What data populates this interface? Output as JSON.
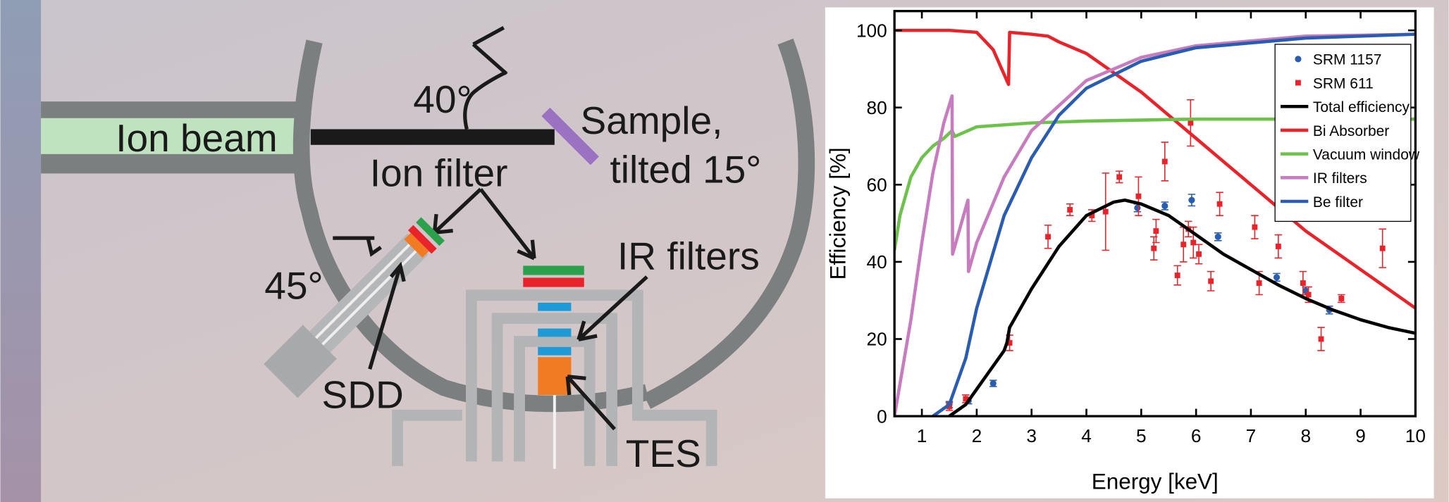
{
  "diagram": {
    "labels": {
      "ion_beam": "Ion beam",
      "angle_40": "40°",
      "sample_line1": "Sample,",
      "sample_line2": "tilted 15°",
      "ion_filter": "Ion filter",
      "angle_45": "45°",
      "ir_filters": "IR filters",
      "sdd": "SDD",
      "tes": "TES"
    }
  },
  "chart_data": {
    "type": "line",
    "x_label": "Energy [keV]",
    "y_label": "Efficiency [%]",
    "xlim": [
      0.5,
      10
    ],
    "ylim": [
      0,
      105
    ],
    "xticks": [
      1,
      2,
      3,
      4,
      5,
      6,
      7,
      8,
      9,
      10
    ],
    "yticks": [
      0,
      20,
      40,
      60,
      80,
      100
    ],
    "grid": false,
    "legend": "upper right",
    "series": [
      {
        "name": "SRM 1157",
        "type": "scatter",
        "marker": "circle",
        "color": "#2a5db0",
        "x": [
          1.5,
          1.85,
          2.3,
          4.93,
          5.43,
          5.92,
          6.4,
          7.47,
          8.0,
          8.43
        ],
        "values": [
          3,
          4,
          8.5,
          54,
          54.5,
          56,
          46.5,
          36,
          32.5,
          27.5
        ],
        "errors": [
          0.8,
          0.8,
          0.8,
          1,
          1,
          1.5,
          1,
          1,
          1,
          1
        ]
      },
      {
        "name": "SRM 611",
        "type": "scatter",
        "marker": "square",
        "color": "#e8242a",
        "x": [
          1.5,
          1.8,
          2.6,
          3.3,
          3.7,
          4.1,
          4.35,
          4.6,
          4.95,
          5.23,
          5.27,
          5.43,
          5.66,
          5.77,
          5.86,
          5.9,
          5.95,
          6.05,
          6.27,
          6.43,
          7.07,
          7.15,
          7.5,
          7.95,
          8.05,
          8.28,
          8.65,
          9.4
        ],
        "values": [
          2.5,
          4.5,
          19,
          46.5,
          53.5,
          52,
          53,
          62,
          57,
          43.5,
          48,
          66,
          36.5,
          44.5,
          48.5,
          76,
          45,
          42,
          35,
          55,
          49,
          34.5,
          44,
          34.5,
          31.5,
          20,
          30.5,
          43.5
        ],
        "errors": [
          1,
          1,
          2,
          3,
          1.5,
          1.5,
          10,
          1.5,
          5,
          3,
          3,
          5,
          2.5,
          4.5,
          2,
          6,
          4,
          2.5,
          2.5,
          3,
          3,
          3,
          3,
          3,
          2,
          3,
          1,
          5
        ]
      },
      {
        "name": "Total efficiency",
        "type": "line",
        "color": "#000000",
        "x": [
          1.5,
          1.8,
          2,
          2.2,
          2.5,
          2.55,
          2.6,
          3,
          3.5,
          4,
          4.5,
          4.7,
          5,
          5.5,
          6,
          6.5,
          7,
          7.5,
          8,
          8.5,
          9,
          9.5,
          10
        ],
        "values": [
          0,
          3,
          7,
          11,
          17,
          19,
          23,
          33,
          44,
          52,
          55.5,
          56,
          55,
          52,
          47,
          42,
          38,
          34,
          30.5,
          27.5,
          25,
          23,
          21.5
        ]
      },
      {
        "name": "Bi Absorber",
        "type": "line",
        "color": "#e8242a",
        "x": [
          0.5,
          1,
          1.5,
          2,
          2.3,
          2.58,
          2.6,
          3,
          3.3,
          3.5,
          4,
          4.5,
          5,
          5.5,
          6,
          6.5,
          7,
          7.5,
          8,
          8.5,
          9,
          9.5,
          10
        ],
        "values": [
          100,
          100,
          100,
          99.5,
          95,
          86,
          99.5,
          99,
          98.5,
          97,
          94,
          89,
          84,
          78,
          72,
          66,
          60,
          54,
          48,
          43,
          38,
          33,
          28
        ]
      },
      {
        "name": "Vacuum window",
        "type": "line",
        "color": "#6cc24a",
        "x": [
          0.5,
          0.6,
          0.8,
          1,
          1.2,
          1.4,
          1.55,
          1.6,
          2,
          3,
          4,
          6,
          8,
          10
        ],
        "values": [
          43,
          52,
          62,
          67,
          70,
          72,
          74,
          72.5,
          75,
          76,
          76.5,
          77,
          77,
          77
        ]
      },
      {
        "name": "IR filters",
        "type": "line",
        "color": "#c77cc0",
        "x": [
          0.5,
          0.8,
          1,
          1.2,
          1.4,
          1.55,
          1.56,
          1.84,
          1.85,
          2,
          2.5,
          3,
          4,
          5,
          6,
          8,
          10
        ],
        "values": [
          0,
          25,
          45,
          63,
          76,
          83,
          42,
          56,
          37.5,
          45,
          62,
          74,
          87,
          93,
          96,
          98.5,
          99
        ]
      },
      {
        "name": "Be filter",
        "type": "line",
        "color": "#2a5db0",
        "x": [
          1.2,
          1.5,
          1.8,
          2,
          2.5,
          3,
          3.5,
          4,
          5,
          6,
          8,
          10
        ],
        "values": [
          0,
          3,
          15,
          28,
          52,
          67,
          78,
          85,
          92,
          95.5,
          98,
          99
        ]
      }
    ]
  }
}
